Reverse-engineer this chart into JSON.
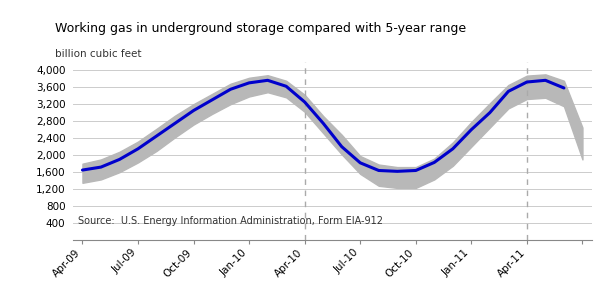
{
  "title": "Working gas in underground storage compared with 5-year range",
  "ylabel": "billion cubic feet",
  "source_text": "Source:  U.S. Energy Information Administration, Form EIA-912",
  "ylim": [
    0,
    4200
  ],
  "yticks": [
    0,
    400,
    800,
    1200,
    1600,
    2000,
    2400,
    2800,
    3200,
    3600,
    4000
  ],
  "ytick_labels": [
    "",
    "400",
    "800",
    "1,200",
    "1,600",
    "2,000",
    "2,400",
    "2,800",
    "3,200",
    "3,600",
    "4,000"
  ],
  "background_color": "#ffffff",
  "line_color": "#0000cc",
  "fill_color": "#b8b8b8",
  "dashed_vline_color": "#aaaaaa",
  "t": [
    0,
    1,
    2,
    3,
    4,
    5,
    6,
    7,
    8,
    9,
    10,
    11,
    12,
    13,
    14,
    15,
    16,
    17,
    18,
    19,
    20,
    21,
    22,
    23,
    24,
    25,
    26,
    27
  ],
  "actual": [
    1650,
    1720,
    1900,
    2150,
    2450,
    2750,
    3050,
    3300,
    3550,
    3700,
    3760,
    3620,
    3250,
    2750,
    2200,
    1820,
    1640,
    1620,
    1640,
    1830,
    2150,
    2600,
    3000,
    3500,
    3720,
    3760,
    3580,
    null
  ],
  "range_low": [
    1350,
    1430,
    1600,
    1830,
    2100,
    2420,
    2720,
    2970,
    3200,
    3380,
    3480,
    3360,
    3020,
    2520,
    2020,
    1560,
    1280,
    1230,
    1230,
    1430,
    1750,
    2200,
    2650,
    3100,
    3320,
    3350,
    3150,
    1900
  ],
  "range_high": [
    1800,
    1900,
    2080,
    2320,
    2620,
    2930,
    3200,
    3440,
    3680,
    3820,
    3880,
    3750,
    3420,
    2920,
    2480,
    1980,
    1780,
    1720,
    1720,
    1920,
    2300,
    2780,
    3220,
    3650,
    3870,
    3900,
    3750,
    2650
  ],
  "xtick_positions": [
    0,
    3,
    6,
    9,
    12,
    15,
    18,
    21,
    24,
    27
  ],
  "xtick_labels": [
    "Apr-09",
    "Jul-09",
    "Oct-09",
    "Jan-10",
    "Apr-10",
    "Jul-10",
    "Oct-10",
    "Jan-11",
    "Apr-11",
    ""
  ],
  "dashed_vlines": [
    12,
    24
  ],
  "xlim": [
    -0.5,
    27.5
  ]
}
